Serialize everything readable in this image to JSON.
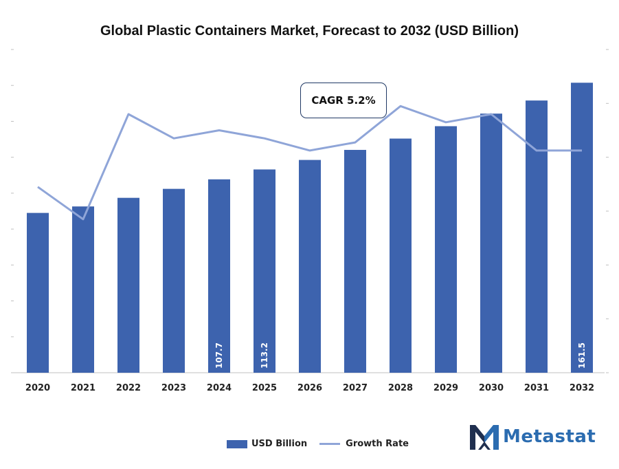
{
  "chart_data": {
    "type": "bar",
    "title": "Global Plastic Containers Market, Forecast to 2032 (USD Billion)",
    "categories": [
      "2020",
      "2021",
      "2022",
      "2023",
      "2024",
      "2025",
      "2026",
      "2027",
      "2028",
      "2029",
      "2030",
      "2031",
      "2032"
    ],
    "series": [
      {
        "name": "USD Billion",
        "type": "bar",
        "values": [
          89.0,
          92.6,
          97.4,
          102.4,
          107.7,
          113.2,
          118.5,
          124.1,
          130.4,
          137.3,
          144.3,
          151.6,
          161.5
        ],
        "data_labels": {
          "4": "107.7",
          "5": "113.2",
          "12": "161.5"
        }
      },
      {
        "name": "Growth Rate",
        "type": "line",
        "values": [
          4.3,
          3.9,
          5.2,
          4.9,
          5.0,
          4.9,
          4.75,
          4.85,
          5.3,
          5.1,
          5.2,
          4.75,
          4.75
        ]
      }
    ],
    "ylim": [
      0,
      180
    ],
    "y2lim": [
      2.0,
      6.0
    ],
    "grid": false,
    "legend": "bottom-center",
    "annotation": "CAGR 5.2%",
    "colors": {
      "bar": "#3d63ae",
      "line": "#8fa5d8",
      "text": "#222222",
      "axis": "#bfbfbf"
    }
  },
  "branding": {
    "logo_text": "Metastat",
    "logo_colors": {
      "m_dark": "#1f2f4f",
      "m_light": "#2b6cb0"
    }
  }
}
